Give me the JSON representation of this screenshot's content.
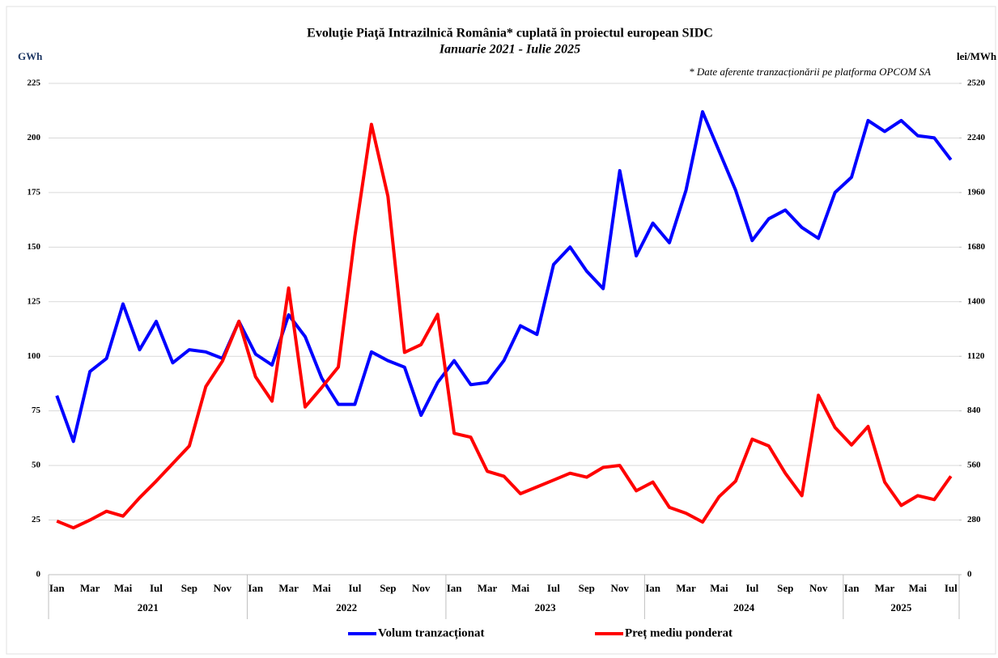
{
  "chart_data": {
    "type": "line",
    "title": "Evoluţie Piaţă Intrazilnică România* cuplată în proiectul  european SIDC",
    "subtitle": "Ianuarie 2021 - Iulie 2025",
    "note": "* Date aferente tranzacționării pe platforma OPCOM SA",
    "y_label": "GWh",
    "y2_label": "lei/MWh",
    "categories": [
      "Ian",
      null,
      "Mar",
      null,
      "Mai",
      null,
      "Iul",
      null,
      "Sep",
      null,
      "Nov",
      null,
      "Ian",
      null,
      "Mar",
      null,
      "Mai",
      null,
      "Iul",
      null,
      "Sep",
      null,
      "Nov",
      null,
      "Ian",
      null,
      "Mar",
      null,
      "Mai",
      null,
      "Iul",
      null,
      "Sep",
      null,
      "Nov",
      null,
      "Ian",
      null,
      "Mar",
      null,
      "Mai",
      null,
      "Iul",
      null,
      "Sep",
      null,
      "Nov",
      null,
      "Ian",
      null,
      "Mar",
      null,
      "Mai",
      null,
      "Iul"
    ],
    "years": [
      "2021",
      "2022",
      "2023",
      "2024",
      "2025"
    ],
    "ylim": [
      0,
      225
    ],
    "yticks": [
      0,
      25,
      50,
      75,
      100,
      125,
      150,
      175,
      200,
      225
    ],
    "y2lim": [
      0,
      2520
    ],
    "y2ticks": [
      0,
      280,
      560,
      840,
      1120,
      1400,
      1680,
      1960,
      2240,
      2520
    ],
    "grid": true,
    "series": [
      {
        "name": "Volum tranzacționat",
        "color": "#0000ff",
        "axis": "y",
        "values": [
          82,
          61,
          93,
          99,
          124,
          103,
          116,
          97,
          103,
          102,
          99,
          116,
          101,
          96,
          119,
          109,
          90,
          78,
          78,
          102,
          98,
          95,
          73,
          88,
          98,
          87,
          88,
          98,
          114,
          110,
          142,
          150,
          139,
          131,
          185,
          146,
          161,
          152,
          176,
          212,
          194,
          176,
          153,
          163,
          167,
          159,
          154,
          175,
          182,
          208,
          203,
          208,
          201,
          200,
          190
        ]
      },
      {
        "name": "Preț mediu ponderat",
        "color": "#ff0000",
        "axis": "y2",
        "values": [
          275,
          240,
          280,
          325,
          300,
          395,
          480,
          570,
          660,
          965,
          1095,
          1300,
          1015,
          890,
          1470,
          860,
          960,
          1065,
          1735,
          2310,
          1940,
          1140,
          1180,
          1335,
          725,
          705,
          530,
          505,
          415,
          450,
          485,
          520,
          500,
          550,
          560,
          430,
          475,
          345,
          315,
          270,
          400,
          480,
          695,
          660,
          520,
          405,
          920,
          755,
          665,
          760,
          475,
          355,
          405,
          385,
          505
        ]
      }
    ]
  }
}
